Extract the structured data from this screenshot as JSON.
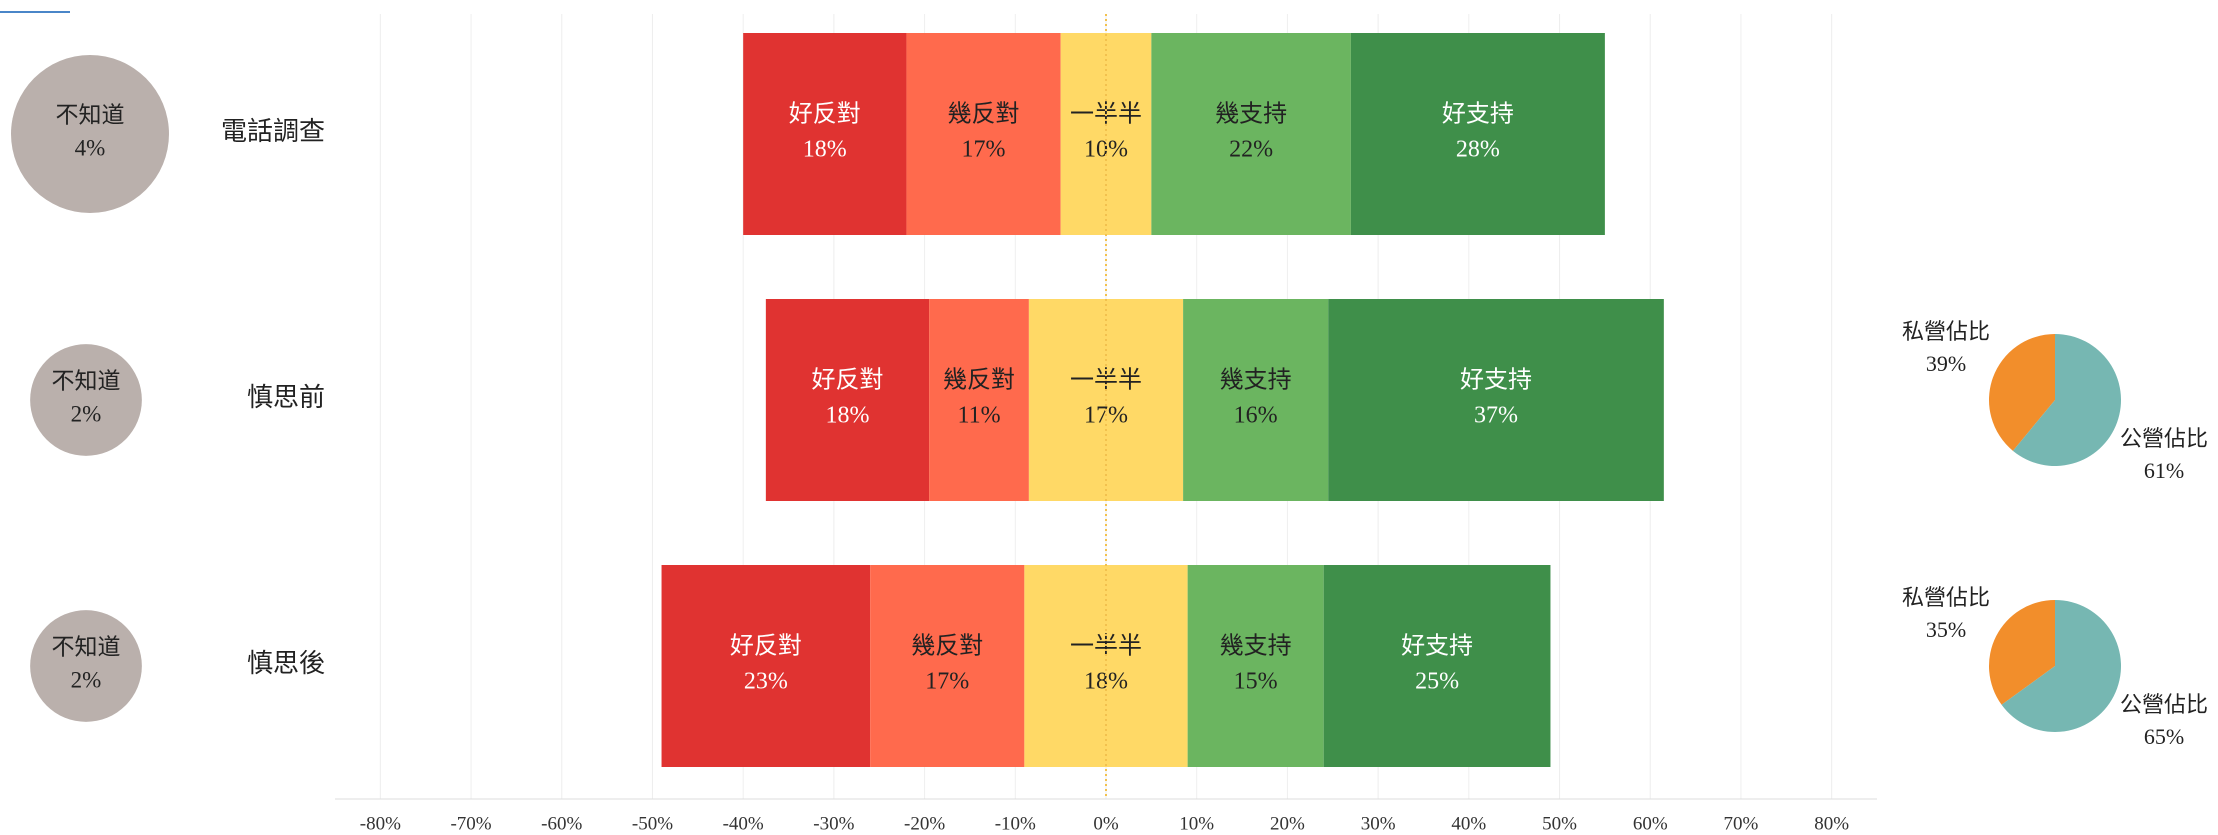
{
  "chart_data": {
    "type": "diverging_bar",
    "categories": [
      "電話調查",
      "慎思前",
      "慎思後"
    ],
    "series": [
      {
        "name": "好反對",
        "color": "#e03331",
        "values": [
          18,
          18,
          23
        ],
        "value_labels": [
          "18%",
          "18%",
          "23%"
        ]
      },
      {
        "name": "幾反對",
        "color": "#ff6a4d",
        "values": [
          17,
          11,
          17
        ],
        "value_labels": [
          "17%",
          "11%",
          "17%"
        ]
      },
      {
        "name": "一半半",
        "color": "#ffd966",
        "values": [
          10,
          17,
          18
        ],
        "value_labels": [
          "10%",
          "17%",
          "18%"
        ]
      },
      {
        "name": "幾支持",
        "color": "#6bb560",
        "values": [
          22,
          16,
          15
        ],
        "value_labels": [
          "22%",
          "16%",
          "15%"
        ]
      },
      {
        "name": "好支持",
        "color": "#3f8f4a",
        "values": [
          28,
          37,
          25
        ],
        "value_labels": [
          "28%",
          "37%",
          "25%"
        ]
      }
    ],
    "dont_know": {
      "label": "不知道",
      "color": "#bab0ac",
      "values": [
        4,
        2,
        2
      ],
      "value_labels": [
        "4%",
        "2%",
        "2%"
      ]
    },
    "pies": [
      {
        "labels": [
          "私營佔比",
          "公營佔比"
        ],
        "colors": [
          "#f28e2b",
          "#76b7b2"
        ],
        "values": [
          39,
          61
        ],
        "value_labels": [
          "39%",
          "61%"
        ]
      },
      {
        "labels": [
          "私營佔比",
          "公營佔比"
        ],
        "colors": [
          "#f28e2b",
          "#76b7b2"
        ],
        "values": [
          35,
          65
        ],
        "value_labels": [
          "35%",
          "65%"
        ]
      }
    ],
    "xlim": [
      -85,
      85
    ],
    "xticks": [
      {
        "value": -80,
        "label": "-80%"
      },
      {
        "value": -70,
        "label": "-70%"
      },
      {
        "value": -60,
        "label": "-60%"
      },
      {
        "value": -50,
        "label": "-50%"
      },
      {
        "value": -40,
        "label": "-40%"
      },
      {
        "value": -30,
        "label": "-30%"
      },
      {
        "value": -20,
        "label": "-20%"
      },
      {
        "value": -10,
        "label": "-10%"
      },
      {
        "value": 0,
        "label": "0%"
      },
      {
        "value": 10,
        "label": "10%"
      },
      {
        "value": 20,
        "label": "20%"
      },
      {
        "value": 30,
        "label": "30%"
      },
      {
        "value": 40,
        "label": "40%"
      },
      {
        "value": 50,
        "label": "50%"
      },
      {
        "value": 60,
        "label": "60%"
      },
      {
        "value": 70,
        "label": "70%"
      },
      {
        "value": 80,
        "label": "80%"
      }
    ],
    "grid": true
  }
}
